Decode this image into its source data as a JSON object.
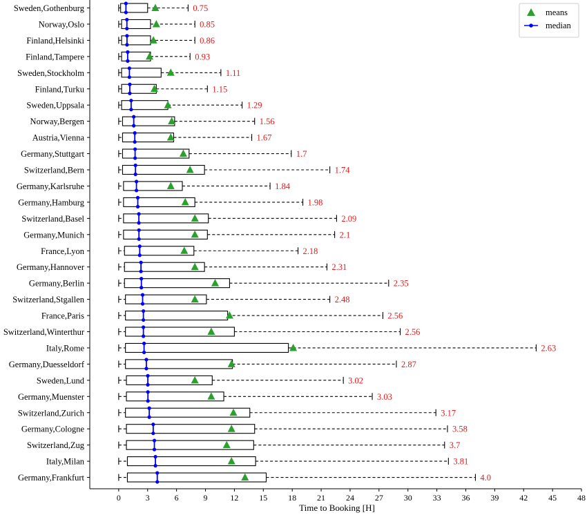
{
  "chart_data": {
    "type": "boxplot",
    "orientation": "horizontal",
    "xlabel": "Time to Booking [H]",
    "xlim": [
      -3,
      48
    ],
    "xticks": [
      0,
      3,
      6,
      9,
      12,
      15,
      18,
      21,
      24,
      27,
      30,
      33,
      36,
      39,
      42,
      45,
      48
    ],
    "legend": {
      "placement": "top-right",
      "entries": [
        {
          "label": "means",
          "marker": "triangle",
          "color": "#2ca02c"
        },
        {
          "label": "median",
          "marker": "line-dot",
          "color": "#0000ff"
        }
      ]
    },
    "colors": {
      "box": "#000000",
      "median": "#0000ff",
      "mean": "#2ca02c",
      "median_label": "#e41a1c"
    },
    "series": [
      {
        "category": "Sweden,Gothenburg",
        "whislo": 0.0,
        "q1": 0.2,
        "med": 0.75,
        "q3": 3.0,
        "whishi": 7.2,
        "mean": 3.8,
        "label": "0.75"
      },
      {
        "category": "Norway,Oslo",
        "whislo": 0.0,
        "q1": 0.3,
        "med": 0.85,
        "q3": 3.3,
        "whishi": 7.9,
        "mean": 3.9,
        "label": "0.85"
      },
      {
        "category": "Finland,Helsinki",
        "whislo": 0.0,
        "q1": 0.3,
        "med": 0.86,
        "q3": 3.3,
        "whishi": 7.9,
        "mean": 3.6,
        "label": "0.86"
      },
      {
        "category": "Finland,Tampere",
        "whislo": 0.0,
        "q1": 0.3,
        "med": 0.93,
        "q3": 3.3,
        "whishi": 7.4,
        "mean": 3.2,
        "label": "0.93"
      },
      {
        "category": "Sweden,Stockholm",
        "whislo": 0.0,
        "q1": 0.3,
        "med": 1.11,
        "q3": 4.4,
        "whishi": 10.6,
        "mean": 5.4,
        "label": "1.11"
      },
      {
        "category": "Finland,Turku",
        "whislo": 0.0,
        "q1": 0.3,
        "med": 1.15,
        "q3": 3.9,
        "whishi": 9.2,
        "mean": 3.7,
        "label": "1.15"
      },
      {
        "category": "Sweden,Uppsala",
        "whislo": 0.0,
        "q1": 0.3,
        "med": 1.29,
        "q3": 5.1,
        "whishi": 12.8,
        "mean": 5.1,
        "label": "1.29"
      },
      {
        "category": "Norway,Bergen",
        "whislo": 0.0,
        "q1": 0.4,
        "med": 1.56,
        "q3": 5.8,
        "whishi": 14.1,
        "mean": 5.5,
        "label": "1.56"
      },
      {
        "category": "Austria,Vienna",
        "whislo": 0.0,
        "q1": 0.4,
        "med": 1.67,
        "q3": 5.7,
        "whishi": 13.8,
        "mean": 5.4,
        "label": "1.67"
      },
      {
        "category": "Germany,Stuttgart",
        "whislo": 0.0,
        "q1": 0.4,
        "med": 1.7,
        "q3": 7.3,
        "whishi": 17.9,
        "mean": 6.7,
        "label": "1.7"
      },
      {
        "category": "Switzerland,Bern",
        "whislo": 0.0,
        "q1": 0.4,
        "med": 1.74,
        "q3": 8.9,
        "whishi": 21.9,
        "mean": 7.4,
        "label": "1.74"
      },
      {
        "category": "Germany,Karlsruhe",
        "whislo": 0.0,
        "q1": 0.5,
        "med": 1.84,
        "q3": 6.6,
        "whishi": 15.7,
        "mean": 5.4,
        "label": "1.84"
      },
      {
        "category": "Germany,Hamburg",
        "whislo": 0.0,
        "q1": 0.5,
        "med": 1.98,
        "q3": 7.9,
        "whishi": 19.1,
        "mean": 6.9,
        "label": "1.98"
      },
      {
        "category": "Switzerland,Basel",
        "whislo": 0.0,
        "q1": 0.5,
        "med": 2.09,
        "q3": 9.3,
        "whishi": 22.6,
        "mean": 7.9,
        "label": "2.09"
      },
      {
        "category": "Germany,Munich",
        "whislo": 0.0,
        "q1": 0.5,
        "med": 2.1,
        "q3": 9.2,
        "whishi": 22.4,
        "mean": 7.9,
        "label": "2.1"
      },
      {
        "category": "France,Lyon",
        "whislo": 0.0,
        "q1": 0.6,
        "med": 2.18,
        "q3": 7.8,
        "whishi": 18.6,
        "mean": 6.8,
        "label": "2.18"
      },
      {
        "category": "Germany,Hannover",
        "whislo": 0.0,
        "q1": 0.6,
        "med": 2.31,
        "q3": 8.9,
        "whishi": 21.6,
        "mean": 7.9,
        "label": "2.31"
      },
      {
        "category": "Germany,Berlin",
        "whislo": 0.0,
        "q1": 0.6,
        "med": 2.35,
        "q3": 11.5,
        "whishi": 28.0,
        "mean": 10.0,
        "label": "2.35"
      },
      {
        "category": "Switzerland,Stgallen",
        "whislo": 0.0,
        "q1": 0.7,
        "med": 2.48,
        "q3": 9.1,
        "whishi": 21.9,
        "mean": 7.9,
        "label": "2.48"
      },
      {
        "category": "France,Paris",
        "whislo": 0.0,
        "q1": 0.7,
        "med": 2.56,
        "q3": 11.3,
        "whishi": 27.4,
        "mean": 11.5,
        "label": "2.56"
      },
      {
        "category": "Switzerland,Winterthur",
        "whislo": 0.0,
        "q1": 0.7,
        "med": 2.56,
        "q3": 12.0,
        "whishi": 29.2,
        "mean": 9.6,
        "label": "2.56"
      },
      {
        "category": "Italy,Rome",
        "whislo": 0.0,
        "q1": 0.7,
        "med": 2.63,
        "q3": 17.6,
        "whishi": 43.3,
        "mean": 18.1,
        "label": "2.63"
      },
      {
        "category": "Germany,Duesseldorf",
        "whislo": 0.0,
        "q1": 0.7,
        "med": 2.87,
        "q3": 11.8,
        "whishi": 28.8,
        "mean": 11.7,
        "label": "2.87"
      },
      {
        "category": "Sweden,Lund",
        "whislo": 0.0,
        "q1": 0.8,
        "med": 3.02,
        "q3": 9.7,
        "whishi": 23.3,
        "mean": 7.9,
        "label": "3.02"
      },
      {
        "category": "Germany,Muenster",
        "whislo": 0.0,
        "q1": 0.8,
        "med": 3.03,
        "q3": 10.9,
        "whishi": 26.3,
        "mean": 9.6,
        "label": "3.03"
      },
      {
        "category": "Switzerland,Zurich",
        "whislo": 0.0,
        "q1": 0.7,
        "med": 3.17,
        "q3": 13.6,
        "whishi": 32.9,
        "mean": 11.9,
        "label": "3.17"
      },
      {
        "category": "Germany,Cologne",
        "whislo": 0.0,
        "q1": 0.8,
        "med": 3.58,
        "q3": 14.1,
        "whishi": 34.1,
        "mean": 11.7,
        "label": "3.58"
      },
      {
        "category": "Switzerland,Zug",
        "whislo": 0.0,
        "q1": 0.8,
        "med": 3.7,
        "q3": 14.0,
        "whishi": 33.8,
        "mean": 11.2,
        "label": "3.7"
      },
      {
        "category": "Italy,Milan",
        "whislo": 0.0,
        "q1": 0.9,
        "med": 3.81,
        "q3": 14.2,
        "whishi": 34.2,
        "mean": 11.7,
        "label": "3.81"
      },
      {
        "category": "Germany,Frankfurt",
        "whislo": 0.0,
        "q1": 0.9,
        "med": 4.0,
        "q3": 15.3,
        "whishi": 37.0,
        "mean": 13.1,
        "label": "4.0"
      }
    ]
  }
}
